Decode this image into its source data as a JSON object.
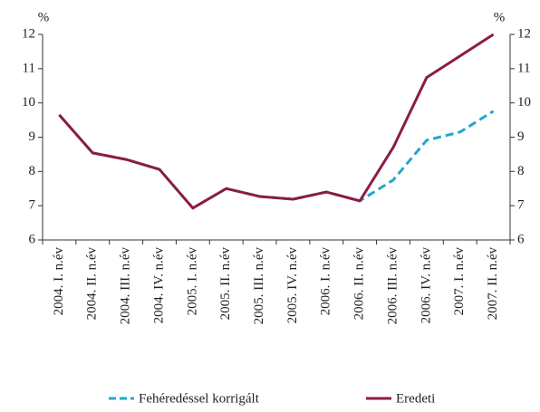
{
  "chart_data": {
    "type": "line",
    "categories": [
      "2004. I. n.év",
      "2004. II. n.év",
      "2004. III. n.év",
      "2004. IV. n.év",
      "2005. I. n.év",
      "2005. II. n.év",
      "2005. III. n.év",
      "2005. IV. n.év",
      "2006. I. n.év",
      "2006. II. n.év",
      "2006. III. n.év",
      "2006. IV. n.év",
      "2007. I. n.év",
      "2007. II. n.év"
    ],
    "series": [
      {
        "name": "Fehéredéssel korrigált",
        "color": "#22a8c8",
        "dashed": true,
        "values": [
          9.65,
          8.54,
          8.35,
          8.06,
          6.93,
          7.5,
          7.27,
          7.19,
          7.4,
          7.14,
          7.75,
          8.91,
          9.15,
          9.76
        ]
      },
      {
        "name": "Eredeti",
        "color": "#8c1c45",
        "dashed": false,
        "values": [
          9.65,
          8.54,
          8.35,
          8.06,
          6.93,
          7.5,
          7.27,
          7.19,
          7.4,
          7.14,
          8.7,
          10.74,
          11.37,
          12.0
        ]
      }
    ],
    "y_label": "%",
    "y2_label": "%",
    "ylim": [
      6,
      12
    ],
    "yticks": [
      6,
      7,
      8,
      9,
      10,
      11,
      12
    ],
    "y2lim": [
      6,
      12
    ],
    "y2ticks": [
      6,
      7,
      8,
      9,
      10,
      11,
      12
    ],
    "grid": false,
    "legend": "bottom"
  }
}
